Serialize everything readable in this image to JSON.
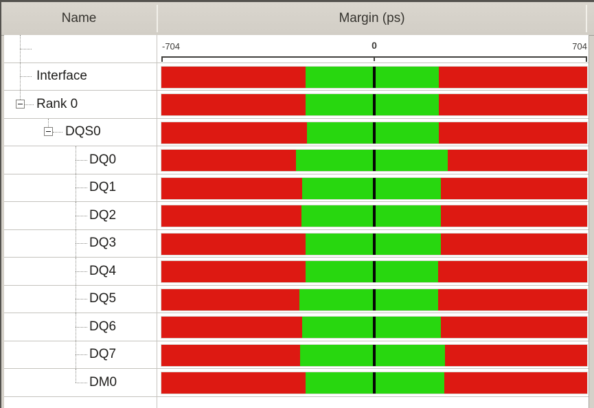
{
  "header": {
    "name_col": "Name",
    "margin_col": "Margin (ps)"
  },
  "axis": {
    "min": -704,
    "max": 704,
    "min_label": "-704",
    "zero_label": "0",
    "max_label": "704"
  },
  "colors": {
    "fail_red": "#dd1912",
    "pass_green": "#28d70f",
    "zero_tick": "#070707",
    "header_bg": "#d5d1c9"
  },
  "rows": [
    {
      "label": "",
      "indent": 0,
      "glyph": "tee",
      "axis_row": true
    },
    {
      "label": "Interface",
      "indent": 0,
      "glyph": "tee",
      "bar": {
        "left_ps": -226,
        "right_ps": 214
      }
    },
    {
      "label": "Rank 0",
      "indent": 0,
      "glyph": "box",
      "expanded": true,
      "bar": {
        "left_ps": -226,
        "right_ps": 214
      }
    },
    {
      "label": "DQS0",
      "indent": 1,
      "glyph": "box",
      "expanded": true,
      "bar": {
        "left_ps": -223,
        "right_ps": 214
      }
    },
    {
      "label": "DQ0",
      "indent": 2,
      "glyph": "tee",
      "bar": {
        "left_ps": -260,
        "right_ps": 244
      }
    },
    {
      "label": "DQ1",
      "indent": 2,
      "glyph": "tee",
      "bar": {
        "left_ps": -239,
        "right_ps": 221
      }
    },
    {
      "label": "DQ2",
      "indent": 2,
      "glyph": "tee",
      "bar": {
        "left_ps": -241,
        "right_ps": 221
      }
    },
    {
      "label": "DQ3",
      "indent": 2,
      "glyph": "tee",
      "bar": {
        "left_ps": -226,
        "right_ps": 221
      }
    },
    {
      "label": "DQ4",
      "indent": 2,
      "glyph": "tee",
      "bar": {
        "left_ps": -226,
        "right_ps": 212
      }
    },
    {
      "label": "DQ5",
      "indent": 2,
      "glyph": "tee",
      "bar": {
        "left_ps": -248,
        "right_ps": 212
      }
    },
    {
      "label": "DQ6",
      "indent": 2,
      "glyph": "tee",
      "bar": {
        "left_ps": -239,
        "right_ps": 221
      }
    },
    {
      "label": "DQ7",
      "indent": 2,
      "glyph": "tee",
      "bar": {
        "left_ps": -246,
        "right_ps": 235
      }
    },
    {
      "label": "DM0",
      "indent": 2,
      "glyph": "last",
      "bar": {
        "left_ps": -226,
        "right_ps": 232
      }
    }
  ]
}
